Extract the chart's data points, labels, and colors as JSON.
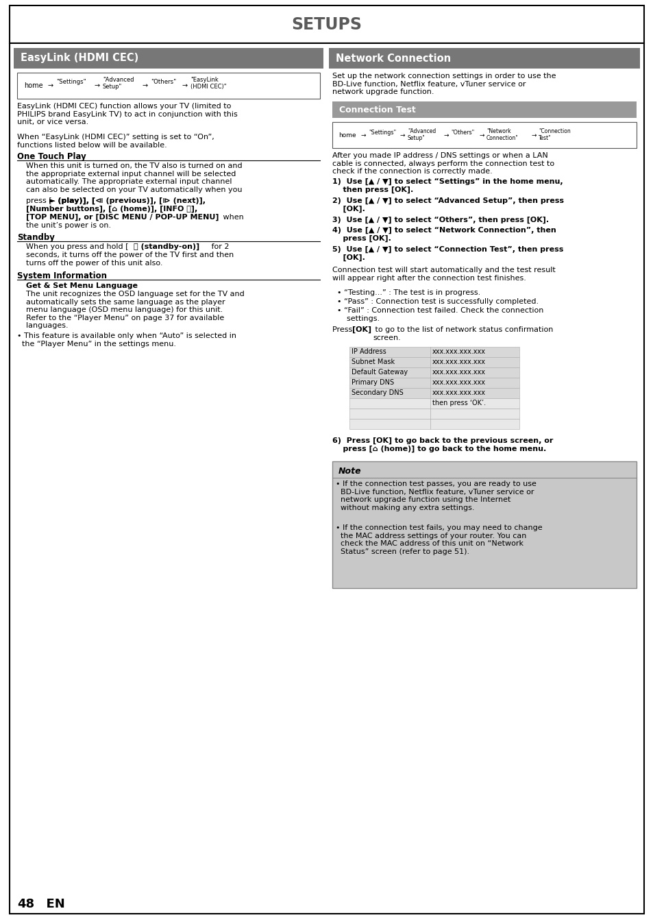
{
  "title": "SETUPS",
  "page_num": "48  EN",
  "header_gray": "#777777",
  "subheader_gray": "#999999",
  "note_gray": "#c8c8c8",
  "border_color": "#000000",
  "left_header": "EasyLink (HDMI CEC)",
  "right_header": "Network Connection",
  "conn_test_header": "Connection Test"
}
